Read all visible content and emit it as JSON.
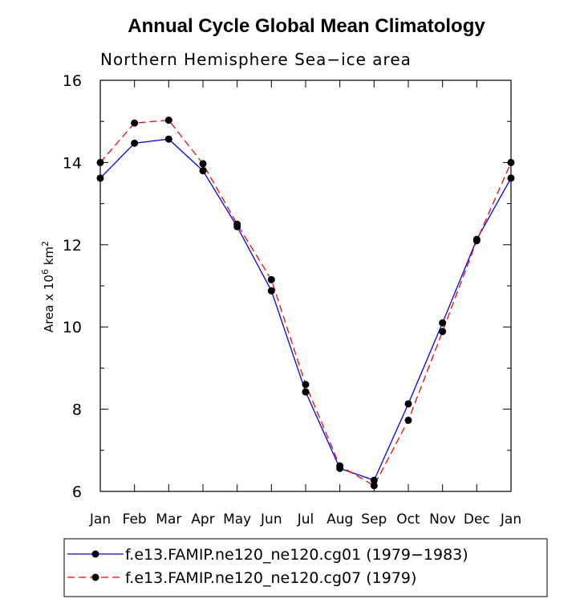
{
  "chart_data": {
    "type": "line",
    "title": "Annual Cycle Global Mean Climatology",
    "subtitle": "Northern Hemisphere Sea−ice area",
    "xlabel": "",
    "ylabel": "Area x 10",
    "ylabel_exp": "6",
    "ylabel_unit": "km",
    "ylabel_unit_exp": "2",
    "categories": [
      "Jan",
      "Feb",
      "Mar",
      "Apr",
      "May",
      "Jun",
      "Jul",
      "Aug",
      "Sep",
      "Oct",
      "Nov",
      "Dec",
      "Jan"
    ],
    "ylim": [
      6,
      16
    ],
    "yticks": [
      6,
      8,
      10,
      12,
      14,
      16
    ],
    "legend_position": "bottom",
    "series": [
      {
        "name": "f.e13.FAMIP.ne120_ne120.cg01 (1979−1983)",
        "color": "#0000ff",
        "dash": "solid",
        "values": [
          13.62,
          14.47,
          14.57,
          13.8,
          12.44,
          10.88,
          8.42,
          6.56,
          6.27,
          8.13,
          10.1,
          12.13,
          13.62
        ]
      },
      {
        "name": "f.e13.FAMIP.ne120_ne120.cg07 (1979)",
        "color": "#ff0000",
        "dash": "dashed",
        "values": [
          14.0,
          14.96,
          15.03,
          13.97,
          12.5,
          11.15,
          8.6,
          6.62,
          6.14,
          7.73,
          9.89,
          12.1,
          14.0
        ]
      }
    ]
  }
}
